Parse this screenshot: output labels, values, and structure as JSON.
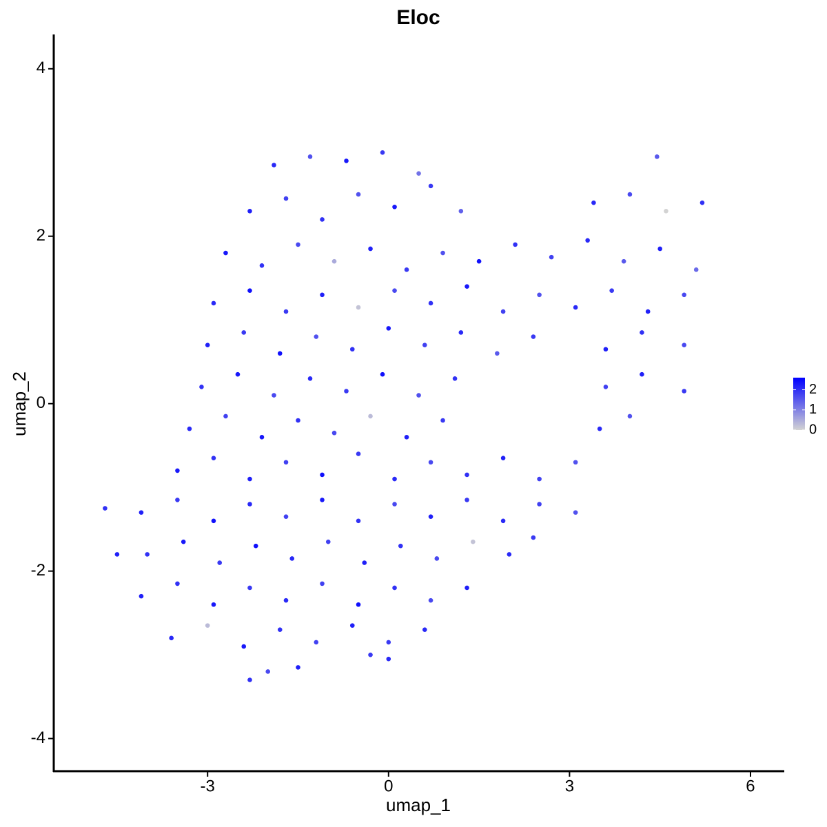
{
  "chart_data": {
    "type": "scatter",
    "title": "Eloc",
    "xlabel": "umap_1",
    "ylabel": "umap_2",
    "x": [
      -1.9,
      -1.3,
      -0.7,
      -0.1,
      0.5,
      4.45,
      -2.3,
      -1.7,
      -1.1,
      -0.5,
      0.1,
      0.7,
      1.2,
      3.4,
      4.0,
      4.6,
      5.2,
      -2.7,
      -2.1,
      -1.5,
      -0.9,
      -0.3,
      0.3,
      0.9,
      1.5,
      2.1,
      2.7,
      3.3,
      3.9,
      4.5,
      5.1,
      -2.9,
      -2.3,
      -1.7,
      -1.1,
      -0.5,
      0.1,
      0.7,
      1.3,
      1.9,
      2.5,
      3.1,
      3.7,
      4.3,
      4.9,
      -3.0,
      -2.4,
      -1.8,
      -1.2,
      -0.6,
      0.0,
      0.6,
      1.2,
      1.8,
      2.4,
      3.6,
      4.2,
      4.9,
      -3.1,
      -2.5,
      -1.9,
      -1.3,
      -0.7,
      -0.1,
      0.5,
      1.1,
      3.6,
      4.2,
      4.9,
      -3.3,
      -2.7,
      -2.1,
      -1.5,
      -0.9,
      -0.3,
      0.3,
      0.9,
      3.5,
      4.0,
      -3.5,
      -2.9,
      -2.3,
      -1.7,
      -1.1,
      -0.5,
      0.1,
      0.7,
      1.3,
      1.9,
      2.5,
      3.1,
      -4.1,
      -3.5,
      -2.9,
      -2.3,
      -1.7,
      -1.1,
      -0.5,
      0.1,
      0.7,
      1.3,
      1.9,
      2.5,
      3.1,
      -4.0,
      -3.4,
      -2.8,
      -2.2,
      -1.6,
      -1.0,
      -0.4,
      0.2,
      0.8,
      1.4,
      2.0,
      2.4,
      -4.1,
      -3.5,
      -2.9,
      -2.3,
      -1.7,
      -1.1,
      -0.5,
      0.1,
      0.7,
      1.3,
      -3.6,
      -3.0,
      -2.4,
      -1.8,
      -1.2,
      -0.6,
      0.0,
      0.6,
      -2.3,
      -2.0,
      -1.5,
      -0.3,
      0.0,
      -4.7,
      -4.5
    ],
    "values": [
      2.85,
      2.95,
      2.9,
      3.0,
      2.75,
      2.95,
      2.3,
      2.45,
      2.2,
      2.5,
      2.35,
      2.6,
      2.3,
      2.4,
      2.5,
      2.3,
      2.4,
      1.8,
      1.65,
      1.9,
      1.7,
      1.85,
      1.6,
      1.8,
      1.7,
      1.9,
      1.75,
      1.95,
      1.7,
      1.85,
      1.6,
      1.2,
      1.35,
      1.1,
      1.3,
      1.15,
      1.35,
      1.2,
      1.4,
      1.1,
      1.3,
      1.15,
      1.35,
      1.1,
      1.3,
      0.7,
      0.85,
      0.6,
      0.8,
      0.65,
      0.9,
      0.7,
      0.85,
      0.6,
      0.8,
      0.65,
      0.85,
      0.7,
      0.2,
      0.35,
      0.1,
      0.3,
      0.15,
      0.35,
      0.1,
      0.3,
      0.2,
      0.35,
      0.15,
      -0.3,
      -0.15,
      -0.4,
      -0.2,
      -0.35,
      -0.15,
      -0.4,
      -0.2,
      -0.3,
      -0.15,
      -0.8,
      -0.65,
      -0.9,
      -0.7,
      -0.85,
      -0.6,
      -0.9,
      -0.7,
      -0.85,
      -0.65,
      -0.9,
      -0.7,
      -1.3,
      -1.15,
      -1.4,
      -1.2,
      -1.35,
      -1.15,
      -1.4,
      -1.2,
      -1.35,
      -1.15,
      -1.4,
      -1.2,
      -1.3,
      -1.8,
      -1.65,
      -1.9,
      -1.7,
      -1.85,
      -1.65,
      -1.9,
      -1.7,
      -1.85,
      -1.65,
      -1.8,
      -1.6,
      -2.3,
      -2.15,
      -2.4,
      -2.2,
      -2.35,
      -2.15,
      -2.4,
      -2.2,
      -2.35,
      -2.2,
      -2.8,
      -2.65,
      -2.9,
      -2.7,
      -2.85,
      -2.65,
      -2.85,
      -2.7,
      -3.3,
      -3.2,
      -3.15,
      -3.0,
      -3.05,
      -1.25,
      -1.8
    ],
    "expression": [
      2.1,
      1.6,
      2.3,
      1.9,
      1.2,
      1.5,
      2.2,
      1.8,
      2.0,
      1.6,
      2.3,
      1.9,
      1.4,
      2.1,
      1.7,
      0,
      2.0,
      2.3,
      2.0,
      1.7,
      0.5,
      2.2,
      1.9,
      1.6,
      2.4,
      2.0,
      1.8,
      2.1,
      1.5,
      2.2,
      1.3,
      2.1,
      2.4,
      1.9,
      2.2,
      0.2,
      1.7,
      2.0,
      2.3,
      1.8,
      1.6,
      2.1,
      1.9,
      2.2,
      1.7,
      2.2,
      1.9,
      2.4,
      1.6,
      2.0,
      2.3,
      1.8,
      2.1,
      1.5,
      1.9,
      2.2,
      2.0,
      1.7,
      2.0,
      2.3,
      1.7,
      2.1,
      1.9,
      2.4,
      1.6,
      2.0,
      1.8,
      2.2,
      1.9,
      2.1,
      1.8,
      2.3,
      2.0,
      1.7,
      0.3,
      2.2,
      1.9,
      2.1,
      1.6,
      2.3,
      2.0,
      2.2,
      1.8,
      2.4,
      1.9,
      2.1,
      1.7,
      2.0,
      2.2,
      1.8,
      1.6,
      2.2,
      1.9,
      2.4,
      2.1,
      1.8,
      2.3,
      2.0,
      1.7,
      2.2,
      1.9,
      2.1,
      1.8,
      1.6,
      2.0,
      2.3,
      1.9,
      2.4,
      2.1,
      1.8,
      2.2,
      2.0,
      1.7,
      0.2,
      2.1,
      1.9,
      2.2,
      2.0,
      2.3,
      1.9,
      2.1,
      1.8,
      2.4,
      2.0,
      1.7,
      2.2,
      2.1,
      0.3,
      2.3,
      2.0,
      1.8,
      2.2,
      1.9,
      2.1,
      2.0,
      1.7,
      2.2,
      1.9,
      2.1,
      2.0,
      2.2
    ],
    "xlim": [
      -5.55,
      6.56
    ],
    "ylim": [
      -4.39,
      4.41
    ],
    "xticks": [
      -3,
      0,
      3,
      6
    ],
    "yticks": [
      -4,
      -2,
      0,
      2,
      4
    ],
    "colors": [
      "#d3d3d3",
      "#0000ff"
    ],
    "color_lim": [
      0,
      2.6
    ],
    "color_ticks": [
      0,
      1,
      2
    ]
  }
}
